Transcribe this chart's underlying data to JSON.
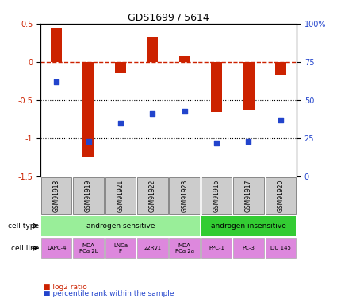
{
  "title": "GDS1699 / 5614",
  "samples": [
    "GSM91918",
    "GSM91919",
    "GSM91921",
    "GSM91922",
    "GSM91923",
    "GSM91916",
    "GSM91917",
    "GSM91920"
  ],
  "log2_ratio": [
    0.45,
    -1.25,
    -0.15,
    0.32,
    0.07,
    -0.65,
    -0.62,
    -0.18
  ],
  "percentile_rank": [
    62,
    23,
    35,
    41,
    43,
    22,
    23,
    37
  ],
  "ylim_left": [
    -1.5,
    0.5
  ],
  "ylim_right": [
    0,
    100
  ],
  "yticks_left": [
    -1.5,
    -1.0,
    -0.5,
    0.0,
    0.5
  ],
  "ytick_labels_left": [
    "-1.5",
    "-1",
    "-0.5",
    "0",
    "0.5"
  ],
  "yticks_right": [
    0,
    25,
    50,
    75,
    100
  ],
  "ytick_labels_right": [
    "0",
    "25",
    "50",
    "75",
    "100%"
  ],
  "bar_color": "#cc2200",
  "dot_color": "#2244cc",
  "hline_color": "#cc2200",
  "dotline1": -0.5,
  "dotline2": -1.0,
  "cell_type_groups": [
    {
      "label": "androgen sensitive",
      "start": 0,
      "end": 5,
      "color": "#99ee99"
    },
    {
      "label": "androgen insensitive",
      "start": 5,
      "end": 8,
      "color": "#33cc33"
    }
  ],
  "cell_lines": [
    "LAPC-4",
    "MDA\nPCa 2b",
    "LNCa\nP",
    "22Rv1",
    "MDA\nPCa 2a",
    "PPC-1",
    "PC-3",
    "DU 145"
  ],
  "cell_line_color": "#dd88dd",
  "gsm_box_color": "#cccccc",
  "separator_after": 5
}
